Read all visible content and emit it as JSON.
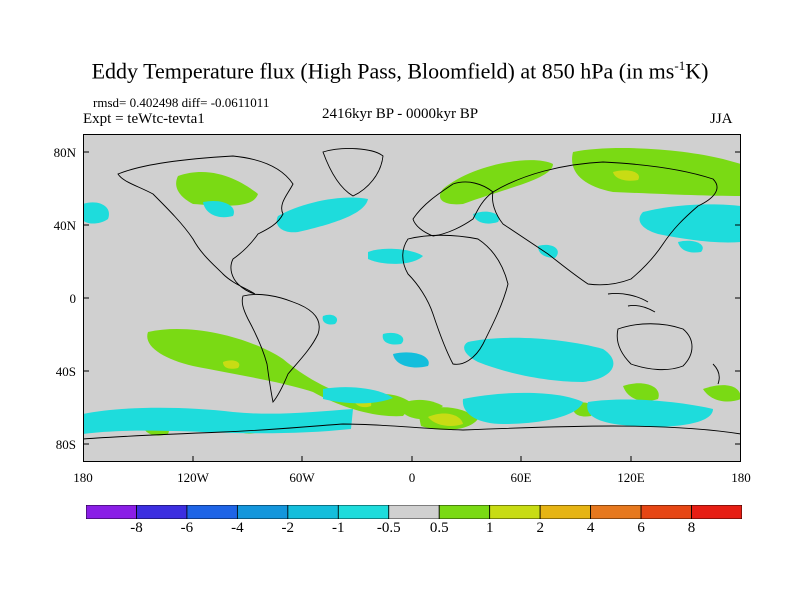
{
  "title": {
    "main": "Eddy Temperature flux (High Pass, Bloomfield) at 850 hPa (in ms",
    "sup": "-1",
    "unit_end": "K)"
  },
  "stats": "rmsd= 0.402498 diff= -0.0611011",
  "expt": "Expt = teWtc-tevta1",
  "period": "2416kyr BP - 0000kyr BP",
  "season": "JJA",
  "y_ticks": [
    "80N",
    "40N",
    "0",
    "40S",
    "80S"
  ],
  "x_ticks": [
    "180",
    "120W",
    "60W",
    "0",
    "60E",
    "120E",
    "180"
  ],
  "colorbar": {
    "labels": [
      "-8",
      "-6",
      "-4",
      "-2",
      "-1",
      "-0.5",
      "0.5",
      "1",
      "2",
      "4",
      "6",
      "8"
    ],
    "colors": [
      "#8a1ee6",
      "#3c2ee0",
      "#1e64e6",
      "#1496dc",
      "#14bedc",
      "#1edcdc",
      "#d0d0d0",
      "#7ada14",
      "#c8dc14",
      "#e6b414",
      "#e6781e",
      "#e64614",
      "#e61e14"
    ]
  },
  "colors": {
    "ocean_land": "#d0d0d0",
    "pos_weak": "#7ada14",
    "pos_mid": "#c8dc14",
    "neg_weak": "#1edcdc",
    "neg_mid": "#14bedc"
  }
}
